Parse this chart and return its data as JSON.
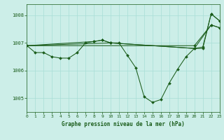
{
  "bg_color": "#cceee8",
  "line_color": "#1a5c1a",
  "grid_color": "#a8ddd6",
  "title": "Graphe pression niveau de la mer (hPa)",
  "xlim": [
    0,
    23
  ],
  "ylim": [
    1004.5,
    1008.4
  ],
  "yticks": [
    1005,
    1006,
    1007,
    1008
  ],
  "xticks": [
    0,
    1,
    2,
    3,
    4,
    5,
    6,
    7,
    8,
    9,
    10,
    11,
    12,
    13,
    14,
    15,
    16,
    17,
    18,
    19,
    20,
    21,
    22,
    23
  ],
  "series": [
    {
      "x": [
        0,
        1,
        2,
        3,
        4,
        5,
        6,
        7,
        8,
        9,
        10,
        11,
        12,
        13,
        14,
        15,
        16,
        17,
        18,
        19,
        20,
        21,
        22,
        23
      ],
      "y": [
        1006.9,
        1006.65,
        1006.65,
        1006.5,
        1006.45,
        1006.45,
        1006.65,
        1007.0,
        1007.05,
        1007.1,
        1007.0,
        1007.0,
        1006.55,
        1006.1,
        1005.05,
        1004.85,
        1004.95,
        1005.55,
        1006.05,
        1006.5,
        1006.8,
        1006.8,
        1008.05,
        1007.8
      ]
    },
    {
      "x": [
        0,
        20,
        22,
        23
      ],
      "y": [
        1006.9,
        1006.9,
        1007.65,
        1007.55
      ]
    },
    {
      "x": [
        0,
        10,
        20,
        21,
        22,
        23
      ],
      "y": [
        1006.9,
        1007.0,
        1006.8,
        1006.85,
        1008.05,
        1007.8
      ]
    },
    {
      "x": [
        0,
        8,
        9,
        10,
        20,
        22,
        23
      ],
      "y": [
        1006.9,
        1007.05,
        1007.1,
        1007.0,
        1006.8,
        1007.65,
        1007.55
      ]
    }
  ]
}
